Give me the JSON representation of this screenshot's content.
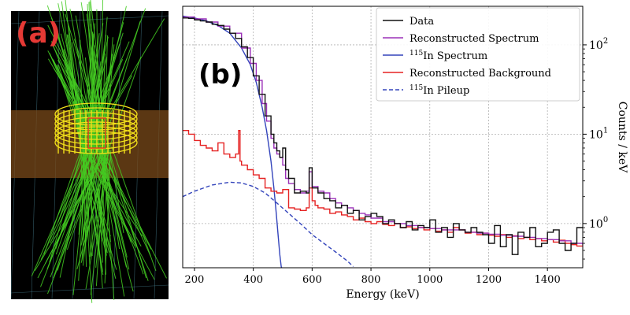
{
  "panel_a": {
    "label": "(a)",
    "label_color": "#e53935",
    "background": "#000000",
    "ray_color": "#44cc22",
    "band_color": "#7a4a1a",
    "detector_color": "#f2e01a",
    "frame_color": "#5aa0b5"
  },
  "chart_data": {
    "type": "line",
    "panel_label": "(b)",
    "xlabel": "Energy (keV)",
    "ylabel": "Counts / keV",
    "xlim": [
      160,
      1520
    ],
    "ylim": [
      0.32,
      270
    ],
    "yscale": "log",
    "grid": true,
    "legend_position": "top-right",
    "x_ticks": [
      200,
      400,
      600,
      800,
      1000,
      1200,
      1400
    ],
    "y_ticks": [
      {
        "value": 1,
        "base": "10",
        "exp": "0"
      },
      {
        "value": 10,
        "base": "10",
        "exp": "1"
      },
      {
        "value": 100,
        "base": "10",
        "exp": "2"
      }
    ],
    "legend": [
      {
        "key": "data",
        "pre": "",
        "sup": "",
        "text": "Data"
      },
      {
        "key": "recon",
        "pre": "",
        "sup": "",
        "text": "Reconstructed Spectrum"
      },
      {
        "key": "in115",
        "pre": "",
        "sup": "115",
        "text": "In Spectrum"
      },
      {
        "key": "bkg",
        "pre": "",
        "sup": "",
        "text": "Reconstructed Background"
      },
      {
        "key": "pileup",
        "pre": "",
        "sup": "115",
        "text": "In Pileup"
      }
    ],
    "series": [
      {
        "key": "in115",
        "color": "#3344bb",
        "style": "solid",
        "step": false,
        "x": [
          160,
          200,
          240,
          280,
          320,
          360,
          390,
          410,
          430,
          445,
          460,
          470,
          478,
          485,
          490,
          495,
          500
        ],
        "y": [
          210,
          200,
          185,
          165,
          135,
          92,
          60,
          38,
          20,
          11,
          5,
          2.5,
          1.3,
          0.7,
          0.45,
          0.33,
          0.3
        ]
      },
      {
        "key": "pileup",
        "color": "#3344bb",
        "style": "dashed",
        "step": false,
        "x": [
          160,
          200,
          260,
          320,
          360,
          400,
          440,
          480,
          520,
          560,
          600,
          640,
          680,
          720,
          740
        ],
        "y": [
          2.0,
          2.3,
          2.7,
          2.9,
          2.85,
          2.6,
          2.2,
          1.7,
          1.3,
          1.0,
          0.75,
          0.6,
          0.48,
          0.38,
          0.33
        ]
      },
      {
        "key": "bkg",
        "color": "#e52222",
        "style": "solid",
        "step": true,
        "x": [
          160,
          180,
          200,
          220,
          240,
          260,
          280,
          300,
          320,
          340,
          350,
          355,
          360,
          380,
          400,
          420,
          440,
          460,
          480,
          500,
          520,
          540,
          560,
          580,
          590,
          600,
          610,
          620,
          640,
          660,
          680,
          700,
          720,
          740,
          760,
          780,
          800,
          820,
          840,
          860,
          880,
          900,
          920,
          940,
          960,
          980,
          1000,
          1020,
          1040,
          1060,
          1080,
          1100,
          1120,
          1140,
          1160,
          1180,
          1200,
          1220,
          1240,
          1260,
          1280,
          1300,
          1320,
          1340,
          1360,
          1380,
          1400,
          1420,
          1440,
          1460,
          1480,
          1500
        ],
        "y": [
          11,
          10,
          8.5,
          7.5,
          7,
          6.5,
          8,
          6,
          5.5,
          6,
          11,
          5,
          4.5,
          4,
          3.5,
          3.2,
          2.5,
          2.3,
          2.2,
          2.4,
          1.5,
          1.45,
          1.4,
          1.5,
          2.5,
          1.8,
          1.6,
          1.5,
          1.45,
          1.3,
          1.35,
          1.25,
          1.2,
          1.1,
          1.15,
          1.05,
          1.0,
          1.05,
          0.98,
          0.95,
          1.0,
          0.9,
          0.92,
          0.88,
          0.9,
          0.85,
          0.88,
          0.82,
          0.85,
          0.8,
          0.9,
          0.85,
          0.78,
          0.8,
          0.75,
          0.78,
          0.74,
          0.72,
          0.75,
          0.7,
          0.73,
          0.68,
          0.7,
          0.66,
          0.68,
          0.64,
          0.66,
          0.62,
          0.65,
          0.6,
          0.58,
          0.56
        ]
      },
      {
        "key": "recon",
        "color": "#9b30b8",
        "style": "solid",
        "step": true,
        "x": [
          160,
          200,
          240,
          280,
          320,
          360,
          390,
          410,
          430,
          445,
          460,
          470,
          480,
          490,
          500,
          510,
          520,
          540,
          560,
          580,
          590,
          600,
          620,
          640,
          660,
          680,
          700,
          720,
          740,
          760,
          780,
          800,
          840,
          880,
          920,
          960,
          1000,
          1040,
          1080,
          1120,
          1160,
          1200,
          1240,
          1280,
          1320,
          1360,
          1400,
          1440,
          1480,
          1520
        ],
        "y": [
          205,
          195,
          180,
          162,
          135,
          92,
          62,
          40,
          22,
          14,
          9,
          7,
          6,
          5.5,
          4.5,
          3.2,
          2.8,
          2.4,
          2.2,
          2.3,
          3.8,
          2.6,
          2.3,
          2.2,
          1.9,
          1.7,
          1.6,
          1.5,
          1.4,
          1.3,
          1.25,
          1.15,
          1.05,
          1.0,
          0.95,
          0.9,
          0.88,
          0.85,
          0.85,
          0.8,
          0.78,
          0.76,
          0.74,
          0.72,
          0.7,
          0.68,
          0.66,
          0.64,
          0.6,
          0.58
        ]
      },
      {
        "key": "data",
        "color": "#111111",
        "style": "solid",
        "step": true,
        "x": [
          160,
          180,
          200,
          220,
          240,
          260,
          280,
          300,
          320,
          340,
          360,
          380,
          400,
          420,
          440,
          460,
          470,
          480,
          490,
          500,
          510,
          520,
          540,
          560,
          580,
          590,
          600,
          620,
          640,
          660,
          680,
          700,
          720,
          740,
          760,
          780,
          800,
          820,
          840,
          860,
          880,
          900,
          920,
          940,
          960,
          980,
          1000,
          1020,
          1040,
          1060,
          1080,
          1100,
          1120,
          1140,
          1160,
          1180,
          1200,
          1220,
          1240,
          1260,
          1280,
          1300,
          1320,
          1340,
          1360,
          1380,
          1400,
          1420,
          1440,
          1460,
          1480,
          1500,
          1520
        ],
        "y": [
          200,
          198,
          190,
          185,
          180,
          170,
          165,
          150,
          135,
          118,
          95,
          72,
          45,
          28,
          16,
          10,
          8,
          6.5,
          5.5,
          7,
          4,
          3.2,
          2.2,
          2.3,
          2.2,
          4.2,
          2.5,
          2.2,
          1.9,
          1.8,
          1.5,
          1.6,
          1.3,
          1.4,
          1.1,
          1.2,
          1.3,
          1.2,
          1.0,
          1.1,
          1.0,
          0.9,
          1.05,
          0.85,
          0.95,
          0.9,
          1.1,
          0.8,
          0.9,
          0.7,
          1.0,
          0.85,
          0.8,
          0.9,
          0.8,
          0.75,
          0.6,
          0.95,
          0.55,
          0.75,
          0.45,
          0.8,
          0.7,
          0.9,
          0.55,
          0.6,
          0.8,
          0.85,
          0.6,
          0.5,
          0.6,
          0.9,
          0.9
        ]
      }
    ]
  }
}
